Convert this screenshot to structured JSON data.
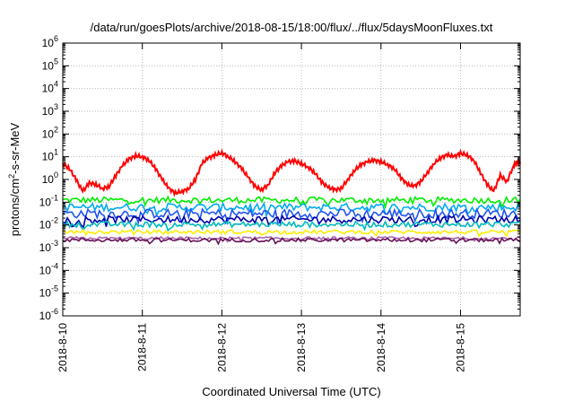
{
  "chart_data": {
    "type": "line",
    "title": "/data/run/goesPlots/archive/2018-08-15/18:00/flux/../flux/5daysMoonFluxes.txt",
    "xlabel": "Coordinated Universal Time (UTC)",
    "ylabel": {
      "prefix": "protons/cm",
      "sup": "2",
      "suffix": "-s-sr-MeV"
    },
    "y_scale": "log",
    "ylim": [
      1e-06,
      1000000.0
    ],
    "y_ticks": [
      {
        "base": "10",
        "exp": "-6"
      },
      {
        "base": "10",
        "exp": "-5"
      },
      {
        "base": "10",
        "exp": "-4"
      },
      {
        "base": "10",
        "exp": "-3"
      },
      {
        "base": "10",
        "exp": "-2"
      },
      {
        "base": "10",
        "exp": "-1"
      },
      {
        "base": "10",
        "exp": "0"
      },
      {
        "base": "10",
        "exp": "1"
      },
      {
        "base": "10",
        "exp": "2"
      },
      {
        "base": "10",
        "exp": "3"
      },
      {
        "base": "10",
        "exp": "4"
      },
      {
        "base": "10",
        "exp": "5"
      },
      {
        "base": "10",
        "exp": "6"
      }
    ],
    "xlim": [
      "2018-08-10T00:00",
      "2018-08-15T18:00"
    ],
    "x_ticks": [
      "2018-8-10",
      "2018-8-11",
      "2018-8-12",
      "2018-8-13",
      "2018-8-14",
      "2018-8-15"
    ],
    "grid": true,
    "legend": "none",
    "series": [
      {
        "color": "#ff0000",
        "points": [
          [
            "2018-08-10T00:00",
            5
          ],
          [
            "2018-08-10T02:00",
            3
          ],
          [
            "2018-08-10T04:00",
            1
          ],
          [
            "2018-08-10T06:00",
            0.3
          ],
          [
            "2018-08-10T08:00",
            0.7
          ],
          [
            "2018-08-10T10:00",
            0.6
          ],
          [
            "2018-08-10T12:00",
            0.4
          ],
          [
            "2018-08-10T14:00",
            0.5
          ],
          [
            "2018-08-10T16:00",
            1.5
          ],
          [
            "2018-08-10T18:00",
            4
          ],
          [
            "2018-08-10T20:00",
            8
          ],
          [
            "2018-08-10T22:00",
            11
          ],
          [
            "2018-08-11T00:00",
            10
          ],
          [
            "2018-08-11T02:00",
            7
          ],
          [
            "2018-08-11T04:00",
            3
          ],
          [
            "2018-08-11T06:00",
            1
          ],
          [
            "2018-08-11T08:00",
            0.4
          ],
          [
            "2018-08-11T10:00",
            0.25
          ],
          [
            "2018-08-11T12:00",
            0.3
          ],
          [
            "2018-08-11T14:00",
            0.4
          ],
          [
            "2018-08-11T16:00",
            1
          ],
          [
            "2018-08-11T18:00",
            5
          ],
          [
            "2018-08-11T20:00",
            9
          ],
          [
            "2018-08-11T22:00",
            12
          ],
          [
            "2018-08-12T00:00",
            15
          ],
          [
            "2018-08-12T02:00",
            10
          ],
          [
            "2018-08-12T04:00",
            6
          ],
          [
            "2018-08-12T06:00",
            3
          ],
          [
            "2018-08-12T08:00",
            1.2
          ],
          [
            "2018-08-12T10:00",
            0.5
          ],
          [
            "2018-08-12T12:00",
            0.35
          ],
          [
            "2018-08-12T14:00",
            0.6
          ],
          [
            "2018-08-12T16:00",
            2
          ],
          [
            "2018-08-12T18:00",
            4
          ],
          [
            "2018-08-12T20:00",
            6
          ],
          [
            "2018-08-12T22:00",
            6.5
          ],
          [
            "2018-08-13T00:00",
            5
          ],
          [
            "2018-08-13T02:00",
            3.5
          ],
          [
            "2018-08-13T04:00",
            2
          ],
          [
            "2018-08-13T06:00",
            0.8
          ],
          [
            "2018-08-13T08:00",
            0.45
          ],
          [
            "2018-08-13T10:00",
            0.35
          ],
          [
            "2018-08-13T12:00",
            0.4
          ],
          [
            "2018-08-13T14:00",
            1
          ],
          [
            "2018-08-13T16:00",
            2.5
          ],
          [
            "2018-08-13T18:00",
            4.5
          ],
          [
            "2018-08-13T20:00",
            6
          ],
          [
            "2018-08-13T22:00",
            7
          ],
          [
            "2018-08-14T00:00",
            6
          ],
          [
            "2018-08-14T02:00",
            4.5
          ],
          [
            "2018-08-14T04:00",
            3
          ],
          [
            "2018-08-14T06:00",
            1.2
          ],
          [
            "2018-08-14T08:00",
            0.6
          ],
          [
            "2018-08-14T10:00",
            0.5
          ],
          [
            "2018-08-14T12:00",
            0.8
          ],
          [
            "2018-08-14T14:00",
            2
          ],
          [
            "2018-08-14T16:00",
            5
          ],
          [
            "2018-08-14T18:00",
            9
          ],
          [
            "2018-08-14T20:00",
            12
          ],
          [
            "2018-08-14T22:00",
            10
          ],
          [
            "2018-08-15T00:00",
            14
          ],
          [
            "2018-08-15T02:00",
            12
          ],
          [
            "2018-08-15T04:00",
            7
          ],
          [
            "2018-08-15T06:00",
            2
          ],
          [
            "2018-08-15T08:00",
            0.6
          ],
          [
            "2018-08-15T10:00",
            0.3
          ],
          [
            "2018-08-15T12:00",
            1.5
          ],
          [
            "2018-08-15T14:00",
            0.8
          ],
          [
            "2018-08-15T16:00",
            4
          ],
          [
            "2018-08-15T17:00",
            6
          ],
          [
            "2018-08-15T18:00",
            5
          ]
        ]
      },
      {
        "color": "#00ee00",
        "band": [
          0.09,
          0.17
        ]
      },
      {
        "color": "#00aaee",
        "band": [
          0.04,
          0.09
        ]
      },
      {
        "color": "#2255ee",
        "band": [
          0.02,
          0.05
        ]
      },
      {
        "color": "#0000aa",
        "band": [
          0.012,
          0.025
        ]
      },
      {
        "color": "#00bbbb",
        "band": [
          0.008,
          0.014
        ]
      },
      {
        "color": "#ffee00",
        "band": [
          0.004,
          0.006
        ]
      },
      {
        "color": "#aa66aa",
        "band": [
          0.0022,
          0.003
        ]
      },
      {
        "color": "#661155",
        "band": [
          0.0018,
          0.0026
        ]
      }
    ]
  }
}
